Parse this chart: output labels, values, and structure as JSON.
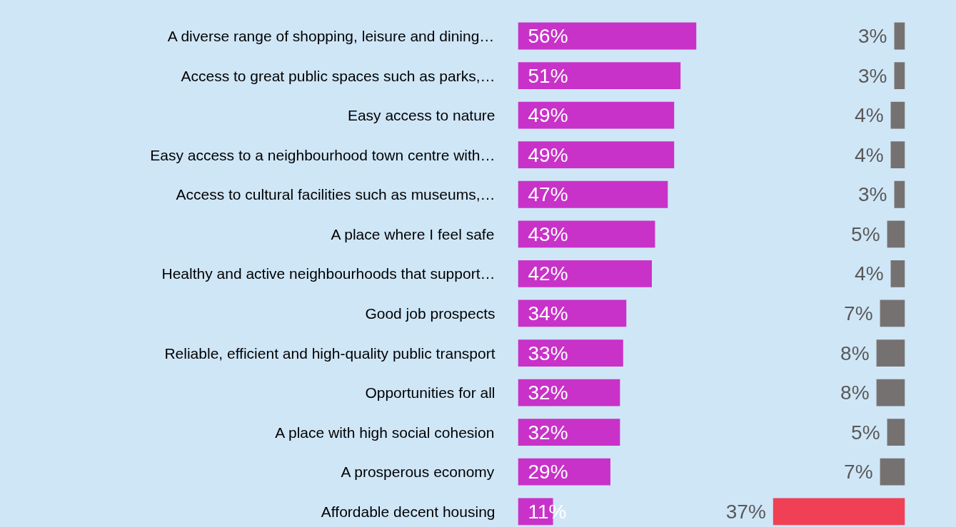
{
  "chart_data": [
    {
      "type": "bar",
      "orientation": "horizontal",
      "categories": [
        "A diverse range of shopping, leisure and dining…",
        "Access to great public spaces such as parks,…",
        "Easy access to nature",
        "Easy access to a neighbourhood town centre with…",
        "Access to cultural facilities such as museums,…",
        "A place where I feel safe",
        "Healthy and active neighbourhoods that support…",
        "Good job prospects",
        "Reliable, efficient and high-quality public transport",
        "Opportunities for all",
        "A place with high social cohesion",
        "A prosperous economy",
        "Affordable decent housing"
      ],
      "values": [
        56,
        51,
        49,
        49,
        47,
        43,
        42,
        34,
        33,
        32,
        32,
        29,
        11
      ],
      "value_labels": [
        "56%",
        "51%",
        "49%",
        "49%",
        "47%",
        "43%",
        "42%",
        "34%",
        "33%",
        "32%",
        "32%",
        "29%",
        "11%"
      ],
      "color": "#c832c8",
      "tick_labels": "y"
    },
    {
      "type": "bar",
      "orientation": "horizontal",
      "categories": [
        null,
        null,
        null,
        null,
        null,
        null,
        null,
        null,
        null,
        null,
        null,
        null,
        null
      ],
      "values": [
        3,
        3,
        4,
        4,
        3,
        5,
        4,
        7,
        8,
        8,
        5,
        7,
        37
      ],
      "value_labels": [
        "3%",
        "3%",
        "4%",
        "4%",
        "3%",
        "5%",
        "4%",
        "7%",
        "8%",
        "8%",
        "5%",
        "7%",
        "37%"
      ],
      "colors": [
        "#767171",
        "#767171",
        "#767171",
        "#767171",
        "#767171",
        "#767171",
        "#767171",
        "#767171",
        "#767171",
        "#767171",
        "#767171",
        "#767171",
        "#ef4055"
      ],
      "tick_labels": false
    }
  ]
}
